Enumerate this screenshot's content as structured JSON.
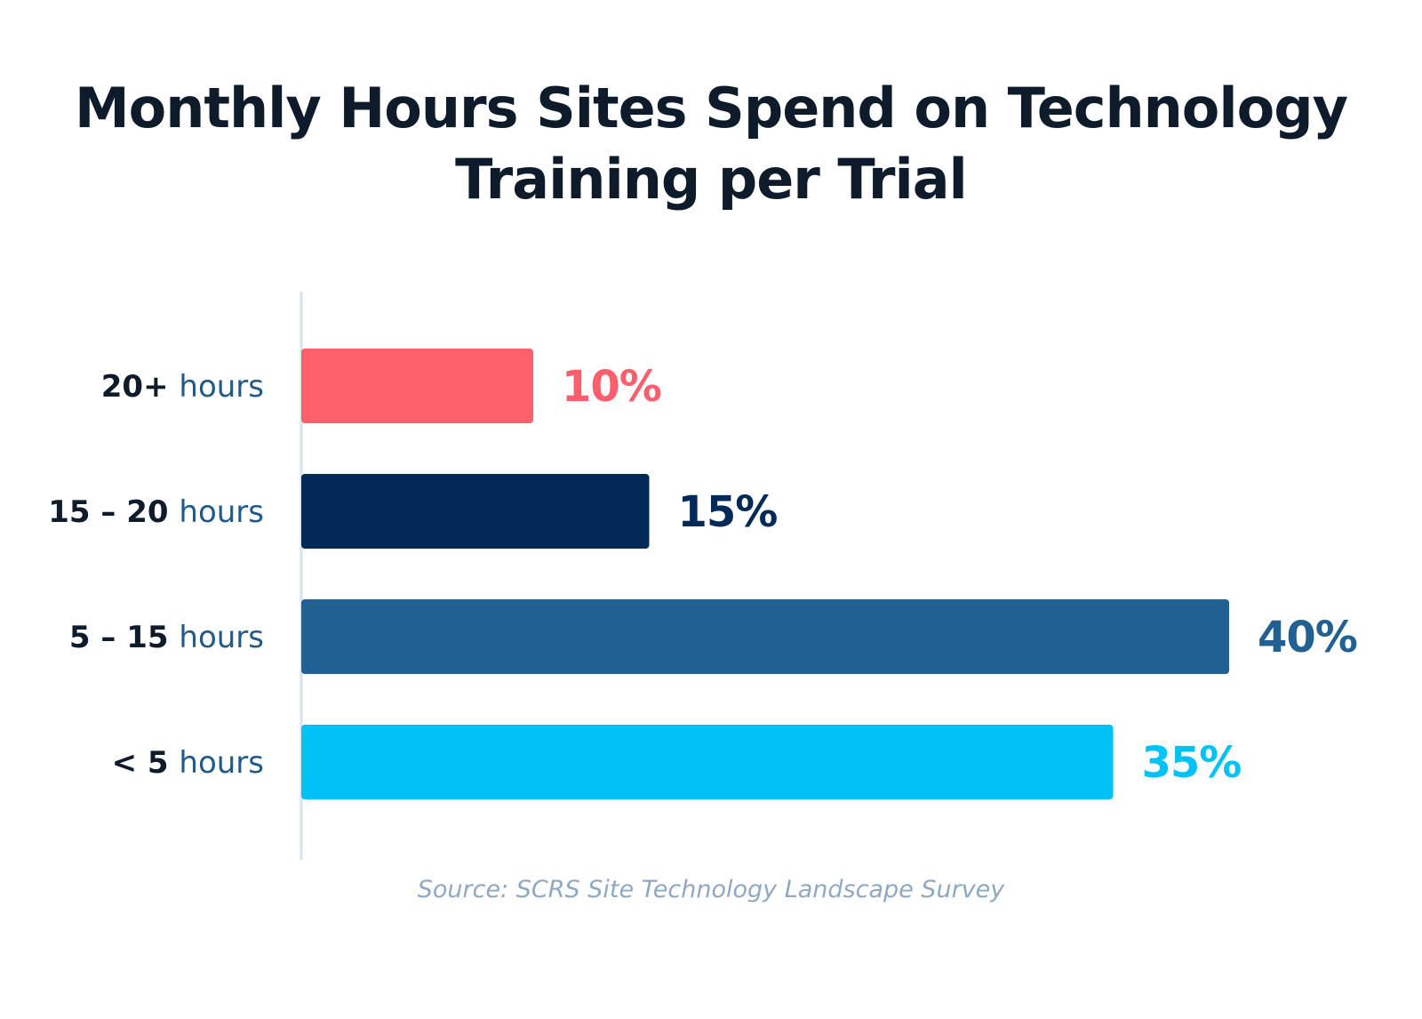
{
  "chart_data": {
    "type": "bar",
    "orientation": "horizontal",
    "title_lines": [
      "Monthly Hours Sites Spend on Technology",
      "Training per Trial"
    ],
    "categories": [
      {
        "prefix": "20+",
        "unit": "hours"
      },
      {
        "prefix": "15 – 20",
        "unit": "hours"
      },
      {
        "prefix": "5 – 15",
        "unit": "hours"
      },
      {
        "prefix": "< 5",
        "unit": "hours"
      }
    ],
    "values": [
      10,
      15,
      40,
      35
    ],
    "value_labels": [
      "10%",
      "15%",
      "40%",
      "35%"
    ],
    "colors": [
      "#ff5f6d",
      "#012a59",
      "#206092",
      "#00c2f7"
    ],
    "label_prefix_color": "#0d1b2a",
    "label_unit_color": "#1f5a8a",
    "axis_color": "#d6e4f0",
    "xlim": [
      0,
      40
    ],
    "grid": false,
    "legend": "none"
  },
  "source": "Source: SCRS Site Technology Landscape Survey"
}
